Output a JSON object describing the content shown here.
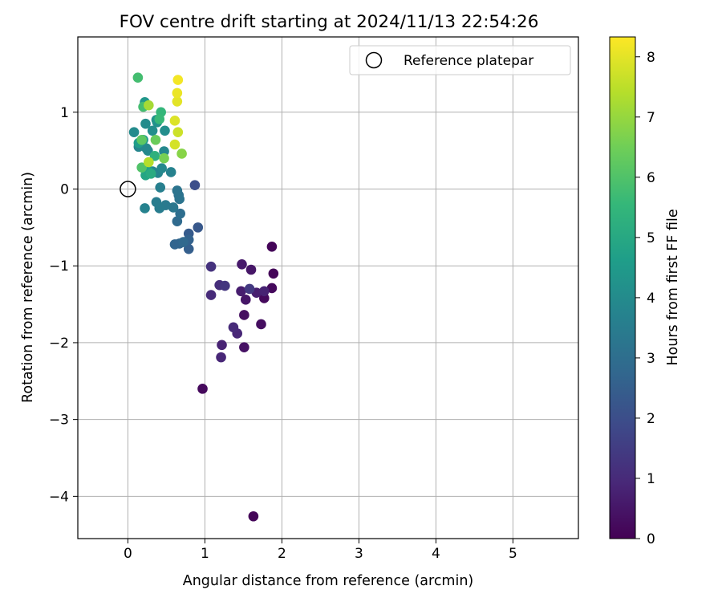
{
  "chart_data": {
    "type": "scatter",
    "title": "FOV centre drift starting at 2024/11/13 22:54:26",
    "xlabel": "Angular distance from reference (arcmin)",
    "ylabel": "Rotation from reference (arcmin)",
    "xlim": [
      -0.65,
      5.85
    ],
    "ylim": [
      -4.55,
      1.98
    ],
    "xticks": [
      0,
      1,
      2,
      3,
      4,
      5
    ],
    "yticks": [
      -4,
      -3,
      -2,
      -1,
      0,
      1
    ],
    "grid": true,
    "legend": {
      "placement": "top-right",
      "entries": [
        "Reference platepar"
      ]
    },
    "reference_point": {
      "x": 0,
      "y": 0,
      "label": "Reference platepar"
    },
    "colorbar": {
      "label": "Hours from first FF file",
      "range": [
        0,
        8.33
      ],
      "ticks": [
        0,
        1,
        2,
        3,
        4,
        5,
        6,
        7,
        8
      ],
      "colormap": "viridis",
      "colors": [
        "#440154",
        "#482878",
        "#3e4989",
        "#31688e",
        "#26828e",
        "#1f9e89",
        "#35b779",
        "#6ece58",
        "#b5de2b",
        "#fde725"
      ]
    },
    "points": [
      {
        "x": 1.63,
        "y": -4.26,
        "c": 0.1
      },
      {
        "x": 0.97,
        "y": -2.6,
        "c": 0.2
      },
      {
        "x": 1.87,
        "y": -0.75,
        "c": 0.1
      },
      {
        "x": 1.89,
        "y": -1.1,
        "c": 0.1
      },
      {
        "x": 1.87,
        "y": -1.29,
        "c": 0.2
      },
      {
        "x": 1.77,
        "y": -1.42,
        "c": 0.2
      },
      {
        "x": 1.73,
        "y": -1.76,
        "c": 0.3
      },
      {
        "x": 1.51,
        "y": -1.64,
        "c": 0.3
      },
      {
        "x": 1.51,
        "y": -2.06,
        "c": 0.4
      },
      {
        "x": 1.53,
        "y": -1.44,
        "c": 0.5
      },
      {
        "x": 1.6,
        "y": -1.05,
        "c": 0.5
      },
      {
        "x": 1.48,
        "y": -0.98,
        "c": 0.6
      },
      {
        "x": 1.47,
        "y": -1.33,
        "c": 0.7
      },
      {
        "x": 1.67,
        "y": -1.35,
        "c": 0.7
      },
      {
        "x": 1.77,
        "y": -1.33,
        "c": 0.8
      },
      {
        "x": 1.42,
        "y": -1.88,
        "c": 0.9
      },
      {
        "x": 1.37,
        "y": -1.8,
        "c": 1.0
      },
      {
        "x": 1.22,
        "y": -2.03,
        "c": 0.8
      },
      {
        "x": 1.21,
        "y": -2.19,
        "c": 0.9
      },
      {
        "x": 1.08,
        "y": -1.38,
        "c": 1.0
      },
      {
        "x": 1.08,
        "y": -1.01,
        "c": 1.2
      },
      {
        "x": 1.19,
        "y": -1.25,
        "c": 1.1
      },
      {
        "x": 1.26,
        "y": -1.26,
        "c": 1.3
      },
      {
        "x": 1.58,
        "y": -1.3,
        "c": 1.4
      },
      {
        "x": 0.87,
        "y": 0.05,
        "c": 2.0
      },
      {
        "x": 0.91,
        "y": -0.5,
        "c": 2.3
      },
      {
        "x": 0.79,
        "y": -0.58,
        "c": 2.4
      },
      {
        "x": 0.79,
        "y": -0.78,
        "c": 2.5
      },
      {
        "x": 0.79,
        "y": -0.66,
        "c": 2.6
      },
      {
        "x": 0.61,
        "y": -0.72,
        "c": 2.7
      },
      {
        "x": 0.67,
        "y": -0.71,
        "c": 2.7
      },
      {
        "x": 0.72,
        "y": -0.69,
        "c": 2.8
      },
      {
        "x": 0.64,
        "y": -0.42,
        "c": 2.9
      },
      {
        "x": 0.68,
        "y": -0.32,
        "c": 3.0
      },
      {
        "x": 0.66,
        "y": -0.08,
        "c": 3.1
      },
      {
        "x": 0.64,
        "y": -0.02,
        "c": 3.2
      },
      {
        "x": 0.67,
        "y": -0.13,
        "c": 3.2
      },
      {
        "x": 0.59,
        "y": -0.24,
        "c": 3.3
      },
      {
        "x": 0.49,
        "y": -0.21,
        "c": 3.4
      },
      {
        "x": 0.41,
        "y": -0.25,
        "c": 3.5
      },
      {
        "x": 0.37,
        "y": -0.17,
        "c": 3.5
      },
      {
        "x": 0.42,
        "y": 0.02,
        "c": 3.6
      },
      {
        "x": 0.22,
        "y": -0.25,
        "c": 3.7
      },
      {
        "x": 0.56,
        "y": 0.22,
        "c": 3.7
      },
      {
        "x": 0.39,
        "y": 0.21,
        "c": 3.8
      },
      {
        "x": 0.44,
        "y": 0.27,
        "c": 3.9
      },
      {
        "x": 0.32,
        "y": 0.23,
        "c": 3.8
      },
      {
        "x": 0.47,
        "y": 0.49,
        "c": 3.9
      },
      {
        "x": 0.26,
        "y": 0.5,
        "c": 4.0
      },
      {
        "x": 0.24,
        "y": 0.53,
        "c": 3.9
      },
      {
        "x": 0.14,
        "y": 0.55,
        "c": 3.8
      },
      {
        "x": 0.18,
        "y": 0.57,
        "c": 3.9
      },
      {
        "x": 0.08,
        "y": 0.74,
        "c": 4.0
      },
      {
        "x": 0.23,
        "y": 0.85,
        "c": 4.0
      },
      {
        "x": 0.32,
        "y": 0.76,
        "c": 4.1
      },
      {
        "x": 0.38,
        "y": 0.87,
        "c": 4.2
      },
      {
        "x": 0.48,
        "y": 0.76,
        "c": 4.1
      },
      {
        "x": 0.37,
        "y": 0.9,
        "c": 4.3
      },
      {
        "x": 0.22,
        "y": 1.13,
        "c": 4.4
      },
      {
        "x": 0.2,
        "y": 0.64,
        "c": 4.5
      },
      {
        "x": 0.14,
        "y": 0.6,
        "c": 4.6
      },
      {
        "x": 0.26,
        "y": 0.24,
        "c": 4.7
      },
      {
        "x": 0.23,
        "y": 0.18,
        "c": 4.9
      },
      {
        "x": 0.3,
        "y": 0.2,
        "c": 5.1
      },
      {
        "x": 0.35,
        "y": 0.43,
        "c": 5.3
      },
      {
        "x": 0.43,
        "y": 1.0,
        "c": 5.5
      },
      {
        "x": 0.41,
        "y": 0.91,
        "c": 5.6
      },
      {
        "x": 0.2,
        "y": 1.07,
        "c": 5.8
      },
      {
        "x": 0.13,
        "y": 1.45,
        "c": 5.8
      },
      {
        "x": 0.18,
        "y": 0.28,
        "c": 6.0
      },
      {
        "x": 0.18,
        "y": 0.64,
        "c": 6.2
      },
      {
        "x": 0.36,
        "y": 0.64,
        "c": 6.4
      },
      {
        "x": 0.47,
        "y": 0.4,
        "c": 6.6
      },
      {
        "x": 0.7,
        "y": 0.46,
        "c": 6.8
      },
      {
        "x": 0.27,
        "y": 1.09,
        "c": 7.2
      },
      {
        "x": 0.27,
        "y": 0.35,
        "c": 7.4
      },
      {
        "x": 0.65,
        "y": 0.74,
        "c": 7.7
      },
      {
        "x": 0.61,
        "y": 0.58,
        "c": 7.8
      },
      {
        "x": 0.61,
        "y": 0.89,
        "c": 7.9
      },
      {
        "x": 0.64,
        "y": 1.14,
        "c": 8.0
      },
      {
        "x": 0.64,
        "y": 1.25,
        "c": 8.1
      },
      {
        "x": 0.65,
        "y": 1.42,
        "c": 8.2
      }
    ]
  }
}
